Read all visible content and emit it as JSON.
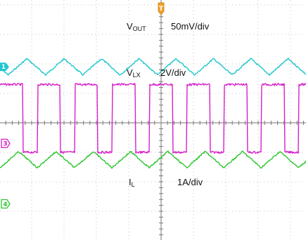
{
  "chart_data": {
    "type": "line",
    "title": "",
    "grid": true,
    "divisions": {
      "x": 10,
      "y": 8
    },
    "trigger_marker": "T",
    "series": [
      {
        "symbol": "V",
        "subscript": "OUT",
        "scale": "50mV/div",
        "channel": "1",
        "color": "#1fc7cf",
        "waveform": "triangle",
        "cycles": 8.2,
        "phase": 0.78,
        "level_div": 5.9,
        "peak_to_peak_div": 0.55
      },
      {
        "symbol": "V",
        "subscript": "LX",
        "scale": "2V/div",
        "channel": "3",
        "color": "#d81fc9",
        "waveform": "square",
        "cycles": 8.2,
        "phase": 0.0,
        "duty": 0.62,
        "high_div": 5.3,
        "low_div": 3.0
      },
      {
        "symbol": "I",
        "subscript": "L",
        "scale": "1A/div",
        "channel": "4",
        "color": "#2fc531",
        "waveform": "triangle",
        "cycles": 8.2,
        "phase": 0.0,
        "level_div": 2.75,
        "peak_to_peak_div": 0.55
      }
    ],
    "channel_markers": [
      {
        "label": "3",
        "color": "#d81fc9",
        "level_div": 3.3
      },
      {
        "label": "4",
        "color": "#2fc531",
        "level_div": 1.25
      }
    ]
  }
}
